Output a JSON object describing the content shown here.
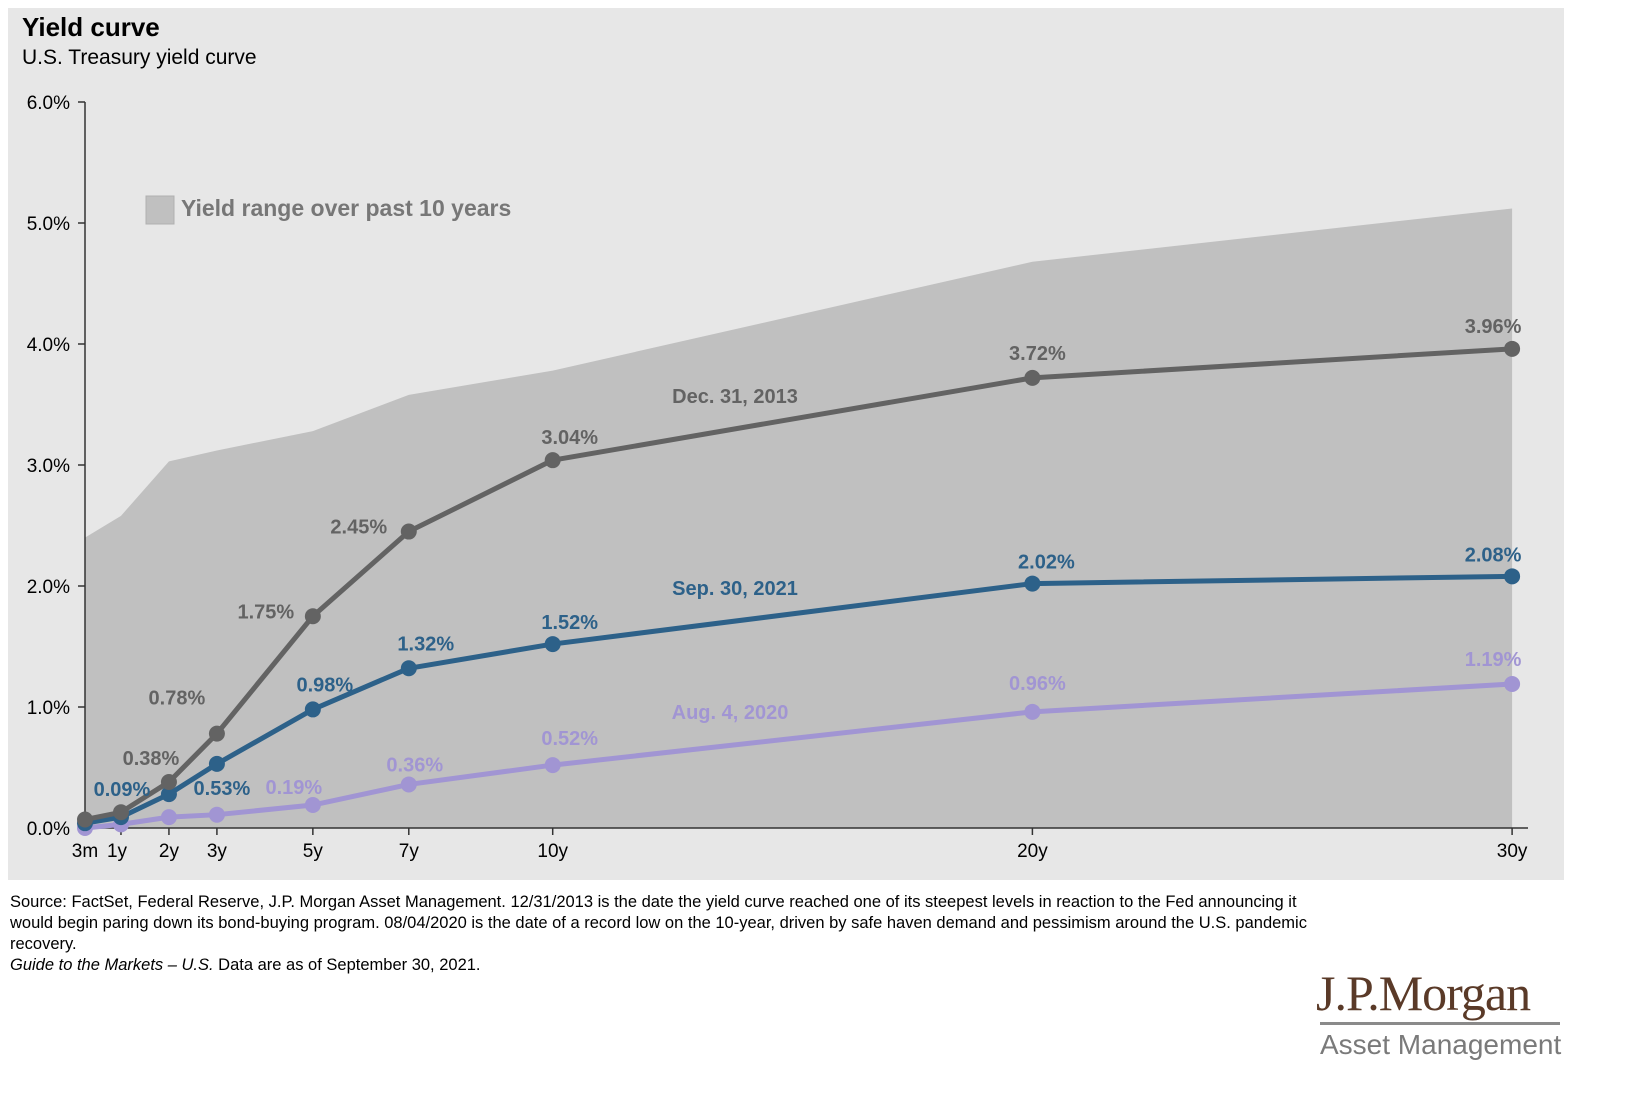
{
  "title": "Yield curve",
  "subtitle": "U.S. Treasury yield curve",
  "chart_data": {
    "type": "line",
    "x_categories": [
      "3m",
      "1y",
      "2y",
      "3y",
      "5y",
      "7y",
      "10y",
      "20y",
      "30y"
    ],
    "x_years": [
      0.25,
      1,
      2,
      3,
      5,
      7,
      10,
      20,
      30
    ],
    "ylim": [
      0,
      6
    ],
    "yticks": [
      0,
      1,
      2,
      3,
      4,
      5,
      6
    ],
    "ytick_labels": [
      "0.0%",
      "1.0%",
      "2.0%",
      "3.0%",
      "4.0%",
      "5.0%",
      "6.0%"
    ],
    "legend": {
      "label": "Yield range over past 10 years",
      "placement": "top-left"
    },
    "range_area": {
      "name": "Yield range over past 10 years",
      "lower": [
        0,
        0,
        0,
        0,
        0,
        0,
        0,
        0,
        0
      ],
      "upper": [
        2.4,
        2.58,
        3.03,
        3.12,
        3.28,
        3.58,
        3.78,
        4.68,
        5.12
      ],
      "color": "#c0c0c0"
    },
    "series": [
      {
        "name": "Dec. 31, 2013",
        "color": "#636363",
        "values": [
          0.07,
          0.13,
          0.38,
          0.78,
          1.75,
          2.45,
          3.04,
          3.72,
          3.96
        ],
        "labels": [
          null,
          null,
          "0.38%",
          "0.78%",
          "1.75%",
          "2.45%",
          "3.04%",
          "3.72%",
          "3.96%"
        ]
      },
      {
        "name": "Sep. 30, 2021",
        "color": "#2d6189",
        "values": [
          0.04,
          0.09,
          0.28,
          0.53,
          0.98,
          1.32,
          1.52,
          2.02,
          2.08
        ],
        "labels": [
          null,
          "0.09%",
          null,
          "0.53%",
          "0.98%",
          "1.32%",
          "1.52%",
          "2.02%",
          "2.08%"
        ]
      },
      {
        "name": "Aug. 4, 2020",
        "color": "#a195d3",
        "values": [
          0.0,
          0.03,
          0.09,
          0.11,
          0.19,
          0.36,
          0.52,
          0.96,
          1.19
        ],
        "labels": [
          null,
          null,
          null,
          null,
          "0.19%",
          "0.36%",
          "0.52%",
          "0.96%",
          "1.19%"
        ]
      }
    ],
    "background": "#e7e7e7",
    "grid": false
  },
  "footnote": {
    "source": "Source: FactSet, Federal Reserve, J.P. Morgan Asset Management. 12/31/2013 is the date the yield curve reached one of its steepest levels in reaction to the Fed announcing it would begin paring down its bond-buying program. 08/04/2020 is the date of a record low on the 10-year, driven by safe haven demand and pessimism around the U.S. pandemic recovery.",
    "guide": "Guide to the Markets – U.S.",
    "asof": " Data are as of September 30, 2021."
  },
  "logo": {
    "line1": "J.P.Morgan",
    "line2": "Asset Management"
  }
}
